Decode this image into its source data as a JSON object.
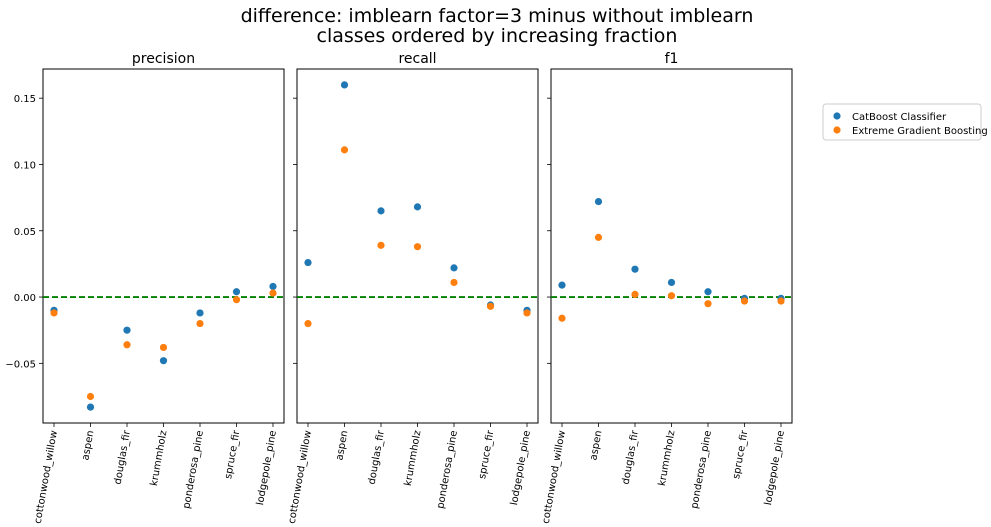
{
  "suptitle_line1": "difference: imblearn factor=3 minus without imblearn",
  "suptitle_line2": "classes ordered by increasing fraction",
  "colors": {
    "catboost": "#1f77b4",
    "xgboost": "#ff7f0e",
    "zero_line": "#008000"
  },
  "legend": {
    "placement": "outside-right",
    "entries": [
      "CatBoost Classifier",
      "Extreme Gradient Boosting"
    ]
  },
  "chart_data": [
    {
      "type": "scatter",
      "title": "precision",
      "categories": [
        "cottonwood_willow",
        "aspen",
        "douglas_fir",
        "krummholz",
        "ponderosa_pine",
        "spruce_fir",
        "lodgepole_pine"
      ],
      "ylim": [
        -0.095,
        0.172
      ],
      "yticks": [
        -0.05,
        0.0,
        0.05,
        0.1,
        0.15
      ],
      "ytick_labels": [
        "−0.05",
        "0.00",
        "0.05",
        "0.10",
        "0.15"
      ],
      "reference_line": 0,
      "series": [
        {
          "name": "CatBoost Classifier",
          "values": [
            -0.01,
            -0.083,
            -0.025,
            -0.048,
            -0.012,
            0.004,
            0.008
          ]
        },
        {
          "name": "Extreme Gradient Boosting",
          "values": [
            -0.012,
            -0.075,
            -0.036,
            -0.038,
            -0.02,
            -0.002,
            0.003
          ]
        }
      ]
    },
    {
      "type": "scatter",
      "title": "recall",
      "categories": [
        "cottonwood_willow",
        "aspen",
        "douglas_fir",
        "krummholz",
        "ponderosa_pine",
        "spruce_fir",
        "lodgepole_pine"
      ],
      "ylim": [
        -0.095,
        0.172
      ],
      "reference_line": 0,
      "series": [
        {
          "name": "CatBoost Classifier",
          "values": [
            0.026,
            0.16,
            0.065,
            0.068,
            0.022,
            -0.006,
            -0.01
          ]
        },
        {
          "name": "Extreme Gradient Boosting",
          "values": [
            -0.02,
            0.111,
            0.039,
            0.038,
            0.011,
            -0.007,
            -0.012
          ]
        }
      ]
    },
    {
      "type": "scatter",
      "title": "f1",
      "categories": [
        "cottonwood_willow",
        "aspen",
        "douglas_fir",
        "krummholz",
        "ponderosa_pine",
        "spruce_fir",
        "lodgepole_pine"
      ],
      "ylim": [
        -0.095,
        0.172
      ],
      "reference_line": 0,
      "series": [
        {
          "name": "CatBoost Classifier",
          "values": [
            0.009,
            0.072,
            0.021,
            0.011,
            0.004,
            -0.001,
            -0.001
          ]
        },
        {
          "name": "Extreme Gradient Boosting",
          "values": [
            -0.016,
            0.045,
            0.002,
            0.001,
            -0.005,
            -0.003,
            -0.003
          ]
        }
      ]
    }
  ]
}
